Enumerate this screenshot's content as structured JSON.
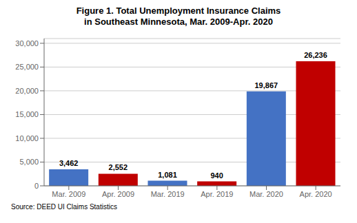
{
  "chart_data": {
    "type": "bar",
    "title": "Figure 1. Total Unemployment Insurance Claims",
    "subtitle": "in Southeast Minnesota, Mar. 2009-Apr. 2020",
    "categories": [
      "Mar. 2009",
      "Apr. 2009",
      "Mar. 2019",
      "Apr. 2019",
      "Mar. 2020",
      "Apr. 2020"
    ],
    "values": [
      3462,
      2552,
      1081,
      940,
      19867,
      26236
    ],
    "value_labels": [
      "3,462",
      "2,552",
      "1,081",
      "940",
      "19,867",
      "26,236"
    ],
    "data_labels": true,
    "colors": [
      "#4472c4",
      "#c00000",
      "#4472c4",
      "#c00000",
      "#4472c4",
      "#c00000"
    ],
    "ylim": [
      0,
      31000
    ],
    "yticks": [
      0,
      {
        "value": 5000,
        "label": "5,000"
      },
      {
        "value": 10000,
        "label": "10,000"
      },
      {
        "value": 15000,
        "label": "15,000"
      },
      {
        "value": 20000,
        "label": "20,000"
      },
      {
        "value": 25000,
        "label": "25,000"
      },
      {
        "value": 30000,
        "label": "30,000"
      }
    ],
    "grid": true,
    "annotations": [
      "Source: DEED UI Claims Statistics"
    ]
  }
}
